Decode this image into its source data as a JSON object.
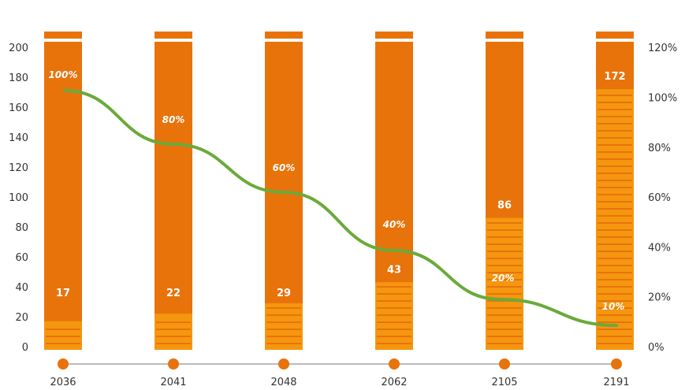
{
  "chart_data": {
    "type": "bar",
    "categories": [
      "2036",
      "2041",
      "2048",
      "2062",
      "2105",
      "2191"
    ],
    "series": [
      {
        "axis": "left",
        "chart": "bar",
        "values": [
          17,
          22,
          29,
          43,
          86,
          172
        ],
        "labels": [
          "17",
          "22",
          "29",
          "43",
          "86",
          "172"
        ]
      },
      {
        "axis": "right",
        "chart": "line",
        "values": [
          100,
          80,
          60,
          40,
          20,
          10
        ],
        "labels": [
          "100%",
          "80%",
          "60%",
          "40%",
          "20%",
          "10%"
        ]
      }
    ],
    "y_left": {
      "min": 0,
      "max": 200,
      "ticks": [
        "0",
        "20",
        "40",
        "60",
        "80",
        "100",
        "120",
        "140",
        "160",
        "180",
        "200"
      ]
    },
    "y_right": {
      "min": 0,
      "max": 120,
      "ticks": [
        "0%",
        "20%",
        "40%",
        "60%",
        "80%",
        "100%",
        "120%"
      ]
    },
    "colors": {
      "bar": "#e8730b",
      "stripe": "#f5960f",
      "line": "#6aaa3a",
      "axis_line": "#bbbbbb",
      "marker": "#e8730b"
    },
    "grid": false,
    "legend": "none"
  }
}
